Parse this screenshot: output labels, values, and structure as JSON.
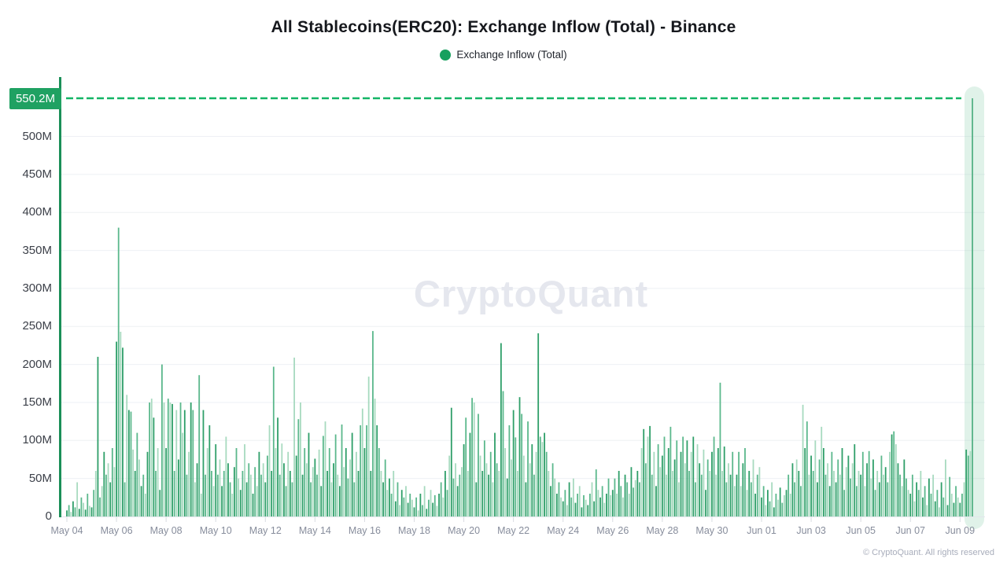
{
  "title": "All Stablecoins(ERC20): Exchange Inflow (Total) - Binance",
  "legend": {
    "label": "Exchange Inflow (Total)",
    "color": "#17a05e"
  },
  "watermark": "CryptoQuant",
  "copyright": "© CryptoQuant. All rights reserved",
  "colors": {
    "bar_shades": [
      "#2f9f69",
      "#5bb88c",
      "#a7dabf"
    ],
    "last_bar": "#56b287",
    "reference_line": "#13b566",
    "badge_bg": "#1fa162",
    "axis_line": "#1b8f58",
    "highlight_band": "#9ed8ba",
    "grid": "#eef0f4",
    "baseline": "#e2e5eb",
    "tick": "#d9dce2"
  },
  "chart_data": {
    "type": "bar",
    "series_name": "Exchange Inflow (Total)",
    "unit": "millions",
    "ylim": [
      0,
      550.2
    ],
    "y_ticks": [
      "0",
      "50M",
      "100M",
      "150M",
      "200M",
      "250M",
      "300M",
      "350M",
      "400M",
      "450M",
      "500M"
    ],
    "y_tick_values": [
      0,
      50,
      100,
      150,
      200,
      250,
      300,
      350,
      400,
      450,
      500
    ],
    "x_tick_labels": [
      "May 04",
      "May 06",
      "May 08",
      "May 10",
      "May 12",
      "May 14",
      "May 16",
      "May 18",
      "May 20",
      "May 22",
      "May 24",
      "May 26",
      "May 28",
      "May 30",
      "Jun 01",
      "Jun 03",
      "Jun 05",
      "Jun 07",
      "Jun 09"
    ],
    "reference_line": {
      "value": 550.2,
      "label": "550.2M"
    },
    "highlight_last": true,
    "bars_per_day": 12,
    "values_millions": [
      8,
      15,
      6,
      20,
      12,
      45,
      10,
      25,
      18,
      9,
      30,
      14,
      12,
      35,
      60,
      210,
      25,
      40,
      85,
      55,
      70,
      45,
      90,
      65,
      230,
      380,
      243,
      222,
      45,
      160,
      140,
      138,
      88,
      60,
      110,
      75,
      40,
      55,
      30,
      85,
      150,
      155,
      130,
      60,
      90,
      35,
      200,
      150,
      90,
      155,
      150,
      148,
      60,
      140,
      75,
      150,
      110,
      140,
      55,
      85,
      150,
      140,
      45,
      70,
      186,
      30,
      140,
      55,
      90,
      120,
      60,
      40,
      95,
      55,
      75,
      40,
      60,
      105,
      70,
      45,
      30,
      65,
      90,
      50,
      35,
      60,
      95,
      45,
      70,
      55,
      30,
      65,
      40,
      85,
      55,
      70,
      45,
      80,
      120,
      60,
      197,
      90,
      130,
      55,
      96,
      70,
      40,
      85,
      60,
      45,
      209,
      80,
      128,
      150,
      55,
      90,
      70,
      110,
      45,
      65,
      76,
      55,
      88,
      40,
      106,
      125,
      60,
      90,
      45,
      70,
      108,
      55,
      40,
      121,
      65,
      90,
      50,
      75,
      110,
      45,
      85,
      60,
      120,
      142,
      90,
      120,
      184,
      60,
      244,
      155,
      120,
      90,
      60,
      45,
      75,
      35,
      50,
      30,
      60,
      20,
      45,
      15,
      35,
      25,
      40,
      18,
      30,
      22,
      12,
      25,
      8,
      30,
      15,
      40,
      10,
      22,
      35,
      18,
      28,
      14,
      30,
      45,
      25,
      60,
      35,
      80,
      143,
      50,
      70,
      40,
      55,
      65,
      95,
      130,
      60,
      110,
      156,
      150,
      45,
      135,
      80,
      60,
      100,
      70,
      55,
      85,
      45,
      110,
      70,
      60,
      228,
      165,
      90,
      50,
      120,
      75,
      140,
      104,
      60,
      157,
      135,
      80,
      45,
      125,
      70,
      95,
      55,
      85,
      241,
      105,
      98,
      110,
      85,
      60,
      40,
      70,
      50,
      30,
      45,
      25,
      20,
      35,
      15,
      45,
      25,
      50,
      18,
      30,
      40,
      12,
      28,
      22,
      15,
      30,
      45,
      20,
      62,
      35,
      25,
      40,
      18,
      30,
      50,
      28,
      35,
      50,
      30,
      60,
      40,
      25,
      55,
      45,
      30,
      65,
      38,
      48,
      60,
      45,
      90,
      115,
      70,
      105,
      119,
      55,
      85,
      40,
      95,
      65,
      80,
      105,
      55,
      90,
      118,
      60,
      75,
      100,
      45,
      85,
      105,
      70,
      100,
      60,
      85,
      105,
      45,
      95,
      70,
      55,
      88,
      35,
      75,
      60,
      85,
      105,
      55,
      90,
      176,
      60,
      92,
      45,
      70,
      55,
      85,
      40,
      55,
      85,
      40,
      70,
      90,
      35,
      60,
      45,
      75,
      30,
      55,
      65,
      25,
      40,
      15,
      35,
      20,
      45,
      12,
      30,
      22,
      38,
      18,
      28,
      35,
      55,
      30,
      70,
      45,
      75,
      60,
      40,
      147,
      90,
      125,
      55,
      80,
      60,
      100,
      45,
      75,
      118,
      90,
      55,
      70,
      40,
      85,
      60,
      45,
      75,
      55,
      90,
      35,
      65,
      80,
      50,
      70,
      95,
      40,
      60,
      55,
      85,
      40,
      70,
      86,
      50,
      75,
      35,
      60,
      45,
      80,
      55,
      65,
      45,
      85,
      108,
      112,
      95,
      70,
      55,
      40,
      75,
      50,
      35,
      30,
      55,
      20,
      45,
      35,
      60,
      25,
      40,
      15,
      50,
      30,
      55,
      20,
      35,
      12,
      45,
      25,
      75,
      15,
      52,
      30,
      18,
      40,
      25,
      18,
      30,
      45,
      88,
      80,
      86,
      550.2
    ]
  }
}
